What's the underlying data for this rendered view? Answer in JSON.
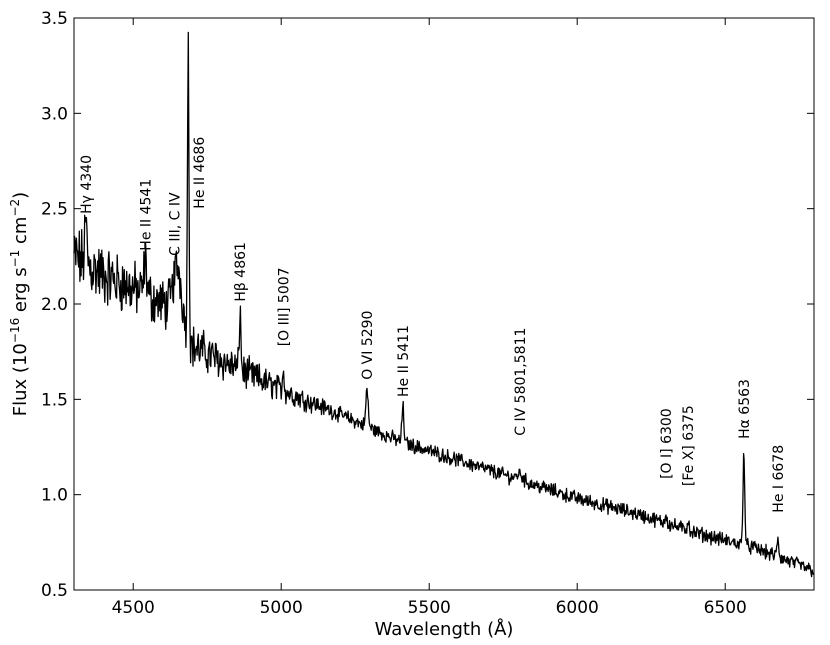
{
  "chart_data": {
    "type": "line",
    "xlabel": "Wavelength (Å)",
    "ylabel": {
      "prefix": "Flux (10",
      "exp1": "−16",
      "mid1": " erg s",
      "exp2": "−1",
      "mid2": " cm",
      "exp3": "−2",
      "suffix": ")"
    },
    "xlim": [
      4300,
      6800
    ],
    "ylim": [
      0.5,
      3.5
    ],
    "xticks": [
      4500,
      5000,
      5500,
      6000,
      6500
    ],
    "yticks": [
      0.5,
      1.0,
      1.5,
      2.0,
      2.5,
      3.0,
      3.5
    ],
    "grid": false,
    "line_color": "#000000",
    "continuum": [
      [
        4300,
        2.25
      ],
      [
        4400,
        2.15
      ],
      [
        4500,
        2.08
      ],
      [
        4600,
        2.0
      ],
      [
        4650,
        1.95
      ],
      [
        4700,
        1.78
      ],
      [
        4800,
        1.7
      ],
      [
        5000,
        1.55
      ],
      [
        5200,
        1.42
      ],
      [
        5400,
        1.28
      ],
      [
        5600,
        1.18
      ],
      [
        5800,
        1.08
      ],
      [
        6000,
        0.98
      ],
      [
        6200,
        0.9
      ],
      [
        6400,
        0.8
      ],
      [
        6600,
        0.72
      ],
      [
        6800,
        0.6
      ]
    ],
    "emission_lines": [
      {
        "center": 4340,
        "peak": 2.42,
        "width": 4
      },
      {
        "center": 4541,
        "peak": 2.22,
        "width": 5
      },
      {
        "center": 4650,
        "peak": 2.2,
        "width": 14
      },
      {
        "center": 4686,
        "peak": 3.44,
        "width": 2.5
      },
      {
        "center": 4861,
        "peak": 1.96,
        "width": 3
      },
      {
        "center": 5007,
        "peak": 1.66,
        "width": 3
      },
      {
        "center": 5290,
        "peak": 1.55,
        "width": 4
      },
      {
        "center": 5411,
        "peak": 1.46,
        "width": 3.5
      },
      {
        "center": 5806,
        "peak": 1.11,
        "width": 10
      },
      {
        "center": 6300,
        "peak": 0.9,
        "width": 3
      },
      {
        "center": 6375,
        "peak": 0.87,
        "width": 3
      },
      {
        "center": 6563,
        "peak": 1.24,
        "width": 3
      },
      {
        "center": 6678,
        "peak": 0.77,
        "width": 3
      }
    ],
    "annotations": [
      {
        "text": "Hγ 4340",
        "x": 4340
      },
      {
        "text": "He II 4541",
        "x": 4541
      },
      {
        "text": "C III, C IV",
        "x": 4640
      },
      {
        "text": "He II 4686",
        "x": 4722
      },
      {
        "text": "Hβ 4861",
        "x": 4861
      },
      {
        "text": "[O III] 5007",
        "x": 5007
      },
      {
        "text": "O VI 5290",
        "x": 5290
      },
      {
        "text": "He II 5411",
        "x": 5411
      },
      {
        "text": "C IV 5801,5811",
        "x": 5806
      },
      {
        "text": "[O I] 6300",
        "x": 6300
      },
      {
        "text": "[Fe X] 6375",
        "x": 6375
      },
      {
        "text": "Hα 6563",
        "x": 6563
      },
      {
        "text": "He I 6678",
        "x": 6678
      }
    ]
  }
}
